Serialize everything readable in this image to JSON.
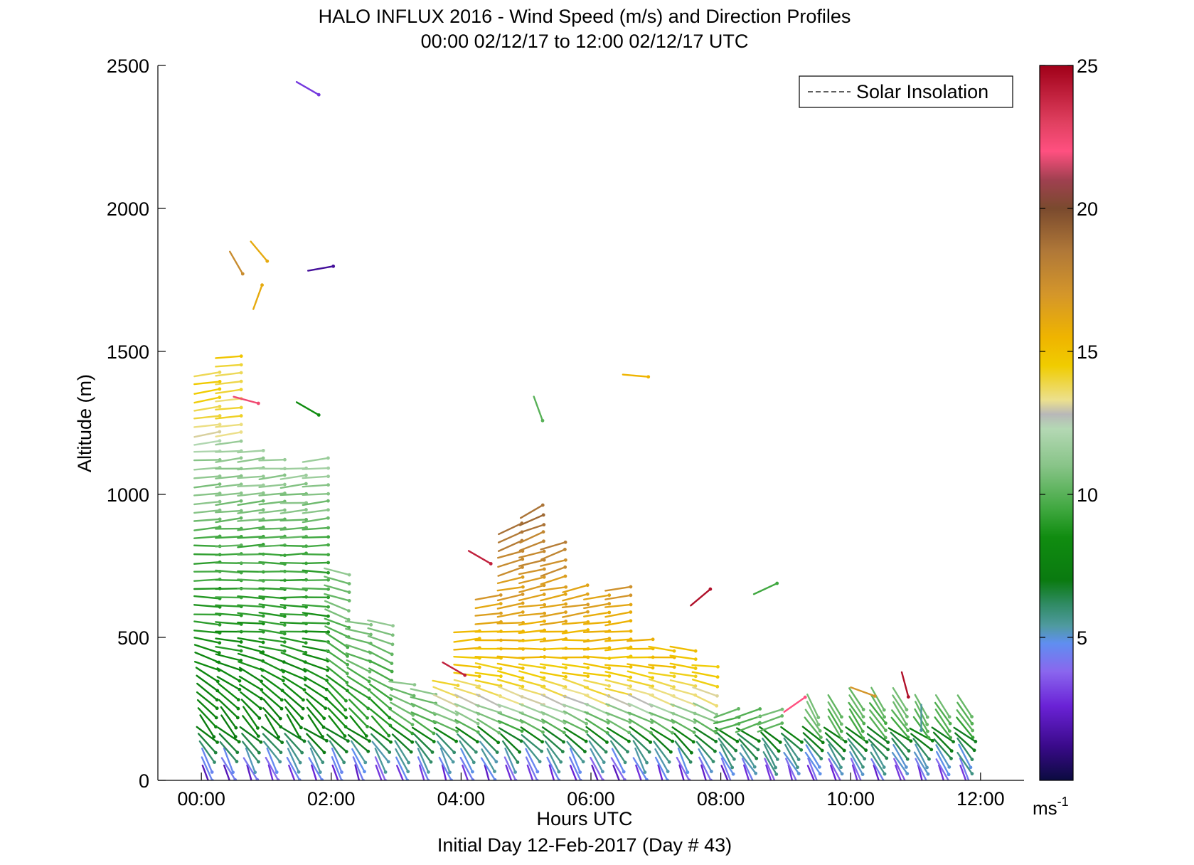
{
  "chart_data": {
    "type": "wind-barb-profile",
    "title": "HALO INFLUX 2016 - Wind Speed (m/s) and Direction Profiles",
    "subtitle": "00:00 02/12/17 to 12:00 02/12/17  UTC",
    "xlabel": "Hours UTC",
    "xlabel2": "Initial Day 12-Feb-2017 (Day # 43)",
    "ylabel": "Altitude (m)",
    "xlim": [
      -0.67,
      12.67
    ],
    "ylim": [
      0,
      2500
    ],
    "xticks": [
      0,
      2,
      4,
      6,
      8,
      10,
      12
    ],
    "xtick_labels": [
      "00:00",
      "02:00",
      "04:00",
      "06:00",
      "08:00",
      "10:00",
      "12:00"
    ],
    "yticks": [
      0,
      500,
      1000,
      1500,
      2000,
      2500
    ],
    "ytick_labels": [
      "0",
      "500",
      "1000",
      "1500",
      "2000",
      "2500"
    ],
    "legend": {
      "entries": [
        "Solar Insolation"
      ],
      "location": "top-right",
      "style": "dashed"
    },
    "grid": false,
    "colorbar": {
      "range": [
        0,
        25
      ],
      "ticks": [
        5,
        10,
        15,
        20,
        25
      ],
      "tick_labels": [
        "5",
        "10",
        "15",
        "20",
        "25"
      ],
      "unit_base": "ms",
      "unit_exp": "-1",
      "stops": [
        [
          0,
          "#0b0b40"
        ],
        [
          1.2,
          "#3a0a8a"
        ],
        [
          2.6,
          "#6a22d6"
        ],
        [
          3.8,
          "#8a66ee"
        ],
        [
          4.8,
          "#5f8ff0"
        ],
        [
          5.4,
          "#4f9aa0"
        ],
        [
          6.2,
          "#2e8a60"
        ],
        [
          7,
          "#0a7a10"
        ],
        [
          8.5,
          "#108c10"
        ],
        [
          9.5,
          "#40a840"
        ],
        [
          11,
          "#88c488"
        ],
        [
          12.3,
          "#b4d8b4"
        ],
        [
          12.8,
          "#b8b8b8"
        ],
        [
          13.3,
          "#ece08e"
        ],
        [
          14.5,
          "#f0cc00"
        ],
        [
          15.5,
          "#efb400"
        ],
        [
          17,
          "#d4962a"
        ],
        [
          18.5,
          "#b07838"
        ],
        [
          20,
          "#7a4a2e"
        ],
        [
          21,
          "#a04050"
        ],
        [
          22,
          "#ff5080"
        ],
        [
          23,
          "#e04060"
        ],
        [
          25,
          "#a00018"
        ]
      ]
    },
    "profiles": [
      {
        "t": 0.0,
        "bottom": 0,
        "top": 1440,
        "dz": 30,
        "kind": "high"
      },
      {
        "t": 0.33,
        "bottom": 0,
        "top": 1480,
        "dz": 30,
        "kind": "high"
      },
      {
        "t": 0.67,
        "bottom": 0,
        "top": 1160,
        "dz": 30,
        "kind": "mid"
      },
      {
        "t": 1.0,
        "bottom": 0,
        "top": 1130,
        "dz": 30,
        "kind": "mid"
      },
      {
        "t": 1.33,
        "bottom": 0,
        "top": 1100,
        "dz": 30,
        "kind": "mid"
      },
      {
        "t": 1.67,
        "bottom": 0,
        "top": 1120,
        "dz": 30,
        "kind": "mid"
      },
      {
        "t": 2.0,
        "bottom": 0,
        "top": 740,
        "dz": 30,
        "kind": "low"
      },
      {
        "t": 2.33,
        "bottom": 0,
        "top": 570,
        "dz": 30,
        "kind": "low"
      },
      {
        "t": 2.67,
        "bottom": 0,
        "top": 570,
        "dz": 30,
        "kind": "low"
      },
      {
        "t": 3.0,
        "bottom": 0,
        "top": 350,
        "dz": 30,
        "kind": "low"
      },
      {
        "t": 3.33,
        "bottom": 0,
        "top": 310,
        "dz": 30,
        "kind": "low"
      },
      {
        "t": 3.67,
        "bottom": 0,
        "top": 350,
        "dz": 30,
        "kind": "jet"
      },
      {
        "t": 4.0,
        "bottom": 0,
        "top": 540,
        "dz": 30,
        "kind": "jet"
      },
      {
        "t": 4.33,
        "bottom": 0,
        "top": 640,
        "dz": 30,
        "kind": "jet"
      },
      {
        "t": 4.67,
        "bottom": 0,
        "top": 900,
        "dz": 30,
        "kind": "jet"
      },
      {
        "t": 5.0,
        "bottom": 0,
        "top": 940,
        "dz": 30,
        "kind": "jet"
      },
      {
        "t": 5.33,
        "bottom": 0,
        "top": 840,
        "dz": 30,
        "kind": "jet"
      },
      {
        "t": 5.67,
        "bottom": 0,
        "top": 680,
        "dz": 30,
        "kind": "jet"
      },
      {
        "t": 6.0,
        "bottom": 0,
        "top": 650,
        "dz": 30,
        "kind": "jet"
      },
      {
        "t": 6.33,
        "bottom": 0,
        "top": 680,
        "dz": 30,
        "kind": "jet"
      },
      {
        "t": 6.67,
        "bottom": 0,
        "top": 490,
        "dz": 30,
        "kind": "jet"
      },
      {
        "t": 7.0,
        "bottom": 0,
        "top": 460,
        "dz": 30,
        "kind": "jet"
      },
      {
        "t": 7.33,
        "bottom": 0,
        "top": 460,
        "dz": 30,
        "kind": "jet"
      },
      {
        "t": 7.67,
        "bottom": 0,
        "top": 420,
        "dz": 30,
        "kind": "jet"
      },
      {
        "t": 8.0,
        "bottom": 0,
        "top": 250,
        "dz": 25,
        "kind": "shallow"
      },
      {
        "t": 8.33,
        "bottom": 0,
        "top": 250,
        "dz": 25,
        "kind": "shallow"
      },
      {
        "t": 8.67,
        "bottom": 0,
        "top": 250,
        "dz": 25,
        "kind": "shallow"
      },
      {
        "t": 9.0,
        "bottom": 0,
        "top": 180,
        "dz": 25,
        "kind": "shallow"
      },
      {
        "t": 9.33,
        "bottom": 0,
        "top": 260,
        "dz": 25,
        "kind": "late"
      },
      {
        "t": 9.67,
        "bottom": 0,
        "top": 260,
        "dz": 25,
        "kind": "late"
      },
      {
        "t": 10.0,
        "bottom": 0,
        "top": 300,
        "dz": 25,
        "kind": "late"
      },
      {
        "t": 10.33,
        "bottom": 0,
        "top": 300,
        "dz": 25,
        "kind": "late"
      },
      {
        "t": 10.67,
        "bottom": 0,
        "top": 300,
        "dz": 25,
        "kind": "late"
      },
      {
        "t": 11.0,
        "bottom": 0,
        "top": 260,
        "dz": 25,
        "kind": "late"
      },
      {
        "t": 11.33,
        "bottom": 0,
        "top": 260,
        "dz": 25,
        "kind": "late"
      },
      {
        "t": 11.67,
        "bottom": 0,
        "top": 280,
        "dz": 25,
        "kind": "late"
      }
    ],
    "isolated_vectors": [
      {
        "t": 1.55,
        "z": 2420,
        "speed": 3.0,
        "dir": 300
      },
      {
        "t": 0.45,
        "z": 1810,
        "speed": 17.5,
        "dir": 330
      },
      {
        "t": 0.8,
        "z": 1850,
        "speed": 16.0,
        "dir": 320
      },
      {
        "t": 1.75,
        "z": 1790,
        "speed": 1.5,
        "dir": 260
      },
      {
        "t": 0.78,
        "z": 1690,
        "speed": 16.0,
        "dir": 200
      },
      {
        "t": 0.6,
        "z": 1330,
        "speed": 22.5,
        "dir": 285
      },
      {
        "t": 1.55,
        "z": 1300,
        "speed": 8.5,
        "dir": 300
      },
      {
        "t": 5.1,
        "z": 1300,
        "speed": 10.0,
        "dir": 340
      },
      {
        "t": 6.6,
        "z": 1415,
        "speed": 15.5,
        "dir": 275
      },
      {
        "t": 4.2,
        "z": 780,
        "speed": 24.0,
        "dir": 300
      },
      {
        "t": 3.8,
        "z": 390,
        "speed": 24.0,
        "dir": 300
      },
      {
        "t": 7.6,
        "z": 640,
        "speed": 24.5,
        "dir": 230
      },
      {
        "t": 8.6,
        "z": 670,
        "speed": 9.5,
        "dir": 245
      },
      {
        "t": 9.05,
        "z": 265,
        "speed": 22.0,
        "dir": 235
      },
      {
        "t": 10.1,
        "z": 310,
        "speed": 17.0,
        "dir": 290
      },
      {
        "t": 10.75,
        "z": 335,
        "speed": 24.5,
        "dir": 345
      },
      {
        "t": 11.0,
        "z": 220,
        "speed": 5.5,
        "dir": 0
      }
    ]
  }
}
